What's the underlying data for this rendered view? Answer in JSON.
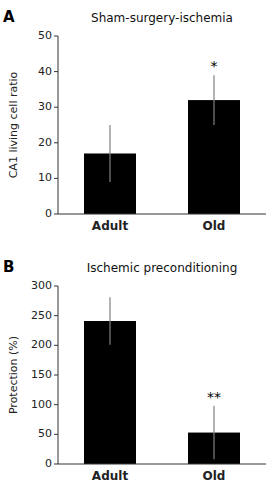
{
  "chart_data": [
    {
      "type": "bar",
      "title": "Sham-surgery-ischemia",
      "categories": [
        "Adult",
        "Old"
      ],
      "values": [
        17,
        32
      ],
      "errors": [
        8,
        7
      ],
      "ylim": [
        0,
        50
      ],
      "yticks": [
        0,
        10,
        20,
        30,
        40,
        50
      ],
      "ylabel": "CA1 living cell ratio",
      "color": "#000000",
      "grid": false,
      "annotations": [
        {
          "text": "A"
        },
        {
          "text": "*",
          "category": "Old"
        }
      ]
    },
    {
      "type": "bar",
      "title": "Ischemic preconditioning",
      "categories": [
        "Adult",
        "Old"
      ],
      "values": [
        241,
        53
      ],
      "errors": [
        40,
        45
      ],
      "ylim": [
        0,
        300
      ],
      "yticks": [
        0,
        50,
        100,
        150,
        200,
        250,
        300
      ],
      "ylabel": "Protection (%)",
      "color": "#000000",
      "grid": false,
      "annotations": [
        {
          "text": "B"
        },
        {
          "text": "**",
          "category": "Old"
        }
      ]
    }
  ]
}
